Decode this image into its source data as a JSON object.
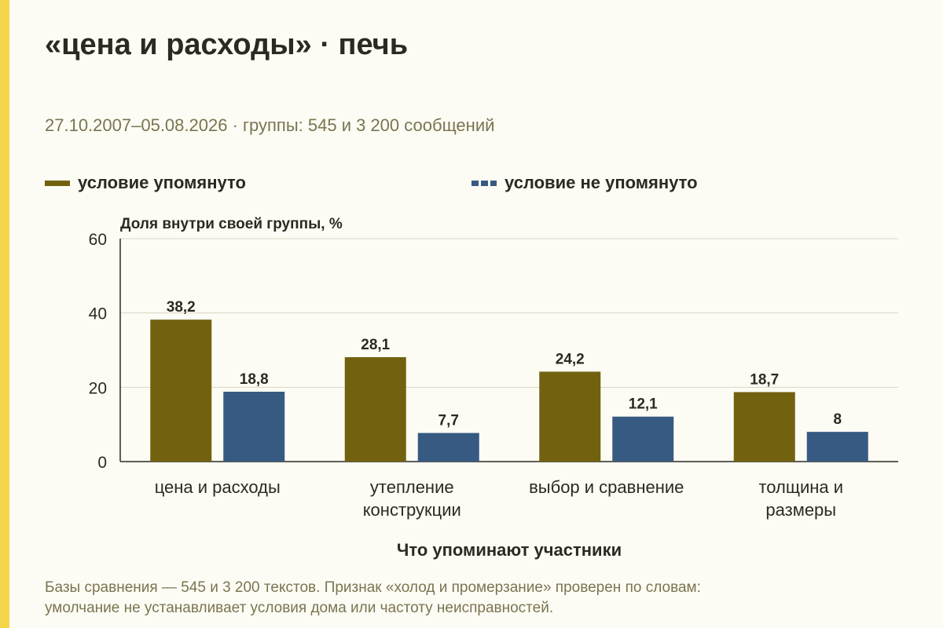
{
  "title": "«цена и расходы» · печь",
  "subtitle": "27.10.2007–05.08.2026 · группы: 545 и 3 200 сообщений",
  "legend": {
    "series1": "условие упомянуто",
    "series2": "условие не упомянуто"
  },
  "footnote": {
    "line1": "Базы сравнения — 545 и 3 200 текстов. Признак «холод и промерзание» проверен по словам:",
    "line2": "умолчание не устанавливает условия дома или частоту неисправностей."
  },
  "colors": {
    "series1": "#72610f",
    "series2": "#375a82",
    "accent": "#f5d64a",
    "grid": "#d9d6c6"
  },
  "chart_data": {
    "type": "bar",
    "ylabel": "Доля внутри своей группы, %",
    "xlabel": "Что упоминают участники",
    "ylim": [
      0,
      60
    ],
    "yticks": [
      "0",
      "20",
      "40",
      "60"
    ],
    "grid": true,
    "legend_position": "top",
    "categories": [
      [
        "цена и расходы"
      ],
      [
        "утепление",
        "конструкции"
      ],
      [
        "выбор и сравнение"
      ],
      [
        "толщина и",
        "размеры"
      ]
    ],
    "series": [
      {
        "name": "условие упомянуто",
        "values": [
          38.2,
          28.1,
          24.2,
          18.7
        ],
        "labels": [
          "38,2",
          "28,1",
          "24,2",
          "18,7"
        ]
      },
      {
        "name": "условие не упомянуто",
        "values": [
          18.8,
          7.7,
          12.1,
          8
        ],
        "labels": [
          "18,8",
          "7,7",
          "12,1",
          "8"
        ]
      }
    ]
  }
}
